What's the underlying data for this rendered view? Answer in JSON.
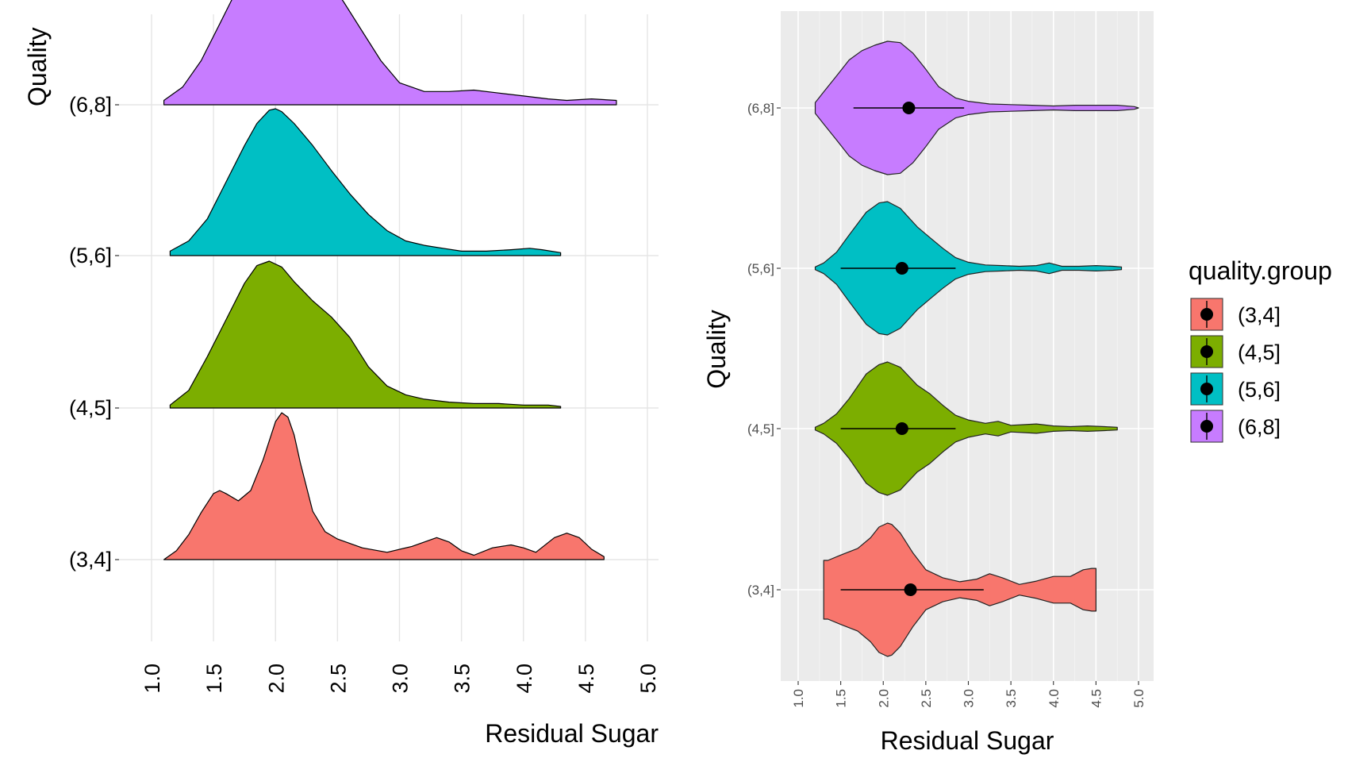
{
  "chart_data": [
    {
      "type": "area",
      "subtype": "ridgeline-density",
      "xlabel": "Residual Sugar",
      "ylabel": "Quality",
      "xlim": [
        1.0,
        5.0
      ],
      "x_ticks": [
        "1.0",
        "1.5",
        "2.0",
        "2.5",
        "3.0",
        "3.5",
        "4.0",
        "4.5",
        "5.0"
      ],
      "categories": [
        "(3,4]",
        "(4,5]",
        "(5,6]",
        "(6,8]"
      ],
      "grid": true,
      "series": [
        {
          "name": "(3,4]",
          "color": "#F8766D",
          "x": [
            1.1,
            1.2,
            1.3,
            1.4,
            1.5,
            1.55,
            1.6,
            1.7,
            1.8,
            1.9,
            2.0,
            2.05,
            2.1,
            2.15,
            2.2,
            2.3,
            2.4,
            2.5,
            2.7,
            2.9,
            3.1,
            3.3,
            3.4,
            3.5,
            3.6,
            3.75,
            3.9,
            4.0,
            4.1,
            4.25,
            4.35,
            4.45,
            4.55,
            4.65
          ],
          "density": [
            0.0,
            0.06,
            0.17,
            0.32,
            0.45,
            0.47,
            0.45,
            0.4,
            0.47,
            0.68,
            0.94,
            1.0,
            0.97,
            0.85,
            0.66,
            0.33,
            0.19,
            0.14,
            0.08,
            0.05,
            0.09,
            0.15,
            0.12,
            0.06,
            0.03,
            0.08,
            0.1,
            0.08,
            0.05,
            0.15,
            0.18,
            0.15,
            0.07,
            0.02
          ]
        },
        {
          "name": "(4,5]",
          "color": "#7CAE00",
          "x": [
            1.15,
            1.3,
            1.45,
            1.6,
            1.75,
            1.85,
            1.95,
            2.05,
            2.15,
            2.3,
            2.45,
            2.6,
            2.75,
            2.9,
            3.05,
            3.2,
            3.4,
            3.6,
            3.8,
            4.0,
            4.2,
            4.3
          ],
          "density": [
            0.02,
            0.12,
            0.35,
            0.6,
            0.85,
            0.97,
            1.0,
            0.96,
            0.86,
            0.73,
            0.62,
            0.48,
            0.28,
            0.15,
            0.09,
            0.06,
            0.04,
            0.03,
            0.03,
            0.02,
            0.02,
            0.01
          ]
        },
        {
          "name": "(5,6]",
          "color": "#00BFC4",
          "x": [
            1.15,
            1.3,
            1.45,
            1.6,
            1.75,
            1.85,
            1.95,
            2.0,
            2.05,
            2.15,
            2.3,
            2.45,
            2.6,
            2.75,
            2.9,
            3.05,
            3.2,
            3.35,
            3.5,
            3.7,
            3.9,
            4.05,
            4.15,
            4.3
          ],
          "density": [
            0.03,
            0.1,
            0.25,
            0.5,
            0.75,
            0.9,
            0.99,
            1.0,
            0.98,
            0.9,
            0.75,
            0.58,
            0.42,
            0.28,
            0.17,
            0.1,
            0.07,
            0.05,
            0.03,
            0.03,
            0.04,
            0.05,
            0.04,
            0.02
          ]
        },
        {
          "name": "(6,8]",
          "color": "#C77CFF",
          "x": [
            1.1,
            1.25,
            1.4,
            1.55,
            1.65,
            1.75,
            1.85,
            1.95,
            2.05,
            2.15,
            2.25,
            2.4,
            2.55,
            2.7,
            2.85,
            3.0,
            3.2,
            3.4,
            3.6,
            3.8,
            4.0,
            4.2,
            4.35,
            4.55,
            4.75
          ],
          "density": [
            0.03,
            0.12,
            0.3,
            0.55,
            0.72,
            0.82,
            0.86,
            0.92,
            0.97,
            1.0,
            0.98,
            0.88,
            0.7,
            0.5,
            0.3,
            0.15,
            0.09,
            0.09,
            0.1,
            0.08,
            0.06,
            0.04,
            0.03,
            0.04,
            0.03
          ]
        }
      ]
    },
    {
      "type": "violin",
      "xlabel": "Residual Sugar",
      "ylabel": "Quality",
      "xlim": [
        1.0,
        5.0
      ],
      "x_ticks": [
        "1.0",
        "1.5",
        "2.0",
        "2.5",
        "3.0",
        "3.5",
        "4.0",
        "4.5",
        "5.0"
      ],
      "categories": [
        "(3,4]",
        "(4,5]",
        "(5,6]",
        "(6,8]"
      ],
      "grid": true,
      "panel_background": "#EBEBEB",
      "legend": {
        "title": "quality.group",
        "position": "right",
        "entries": [
          "(3,4]",
          "(4,5]",
          "(5,6]",
          "(6,8]"
        ]
      },
      "series": [
        {
          "name": "(3,4]",
          "color": "#F8766D",
          "summary": {
            "mean": 2.32,
            "low": 1.5,
            "high": 3.18
          },
          "x": [
            1.3,
            1.35,
            1.5,
            1.7,
            1.85,
            1.95,
            2.05,
            2.1,
            2.2,
            2.35,
            2.5,
            2.7,
            2.9,
            3.1,
            3.25,
            3.4,
            3.6,
            3.8,
            4.0,
            4.2,
            4.35,
            4.45,
            4.5
          ],
          "width": [
            0.44,
            0.44,
            0.52,
            0.62,
            0.78,
            0.94,
            1.0,
            0.98,
            0.85,
            0.55,
            0.3,
            0.18,
            0.12,
            0.16,
            0.24,
            0.18,
            0.08,
            0.13,
            0.2,
            0.2,
            0.3,
            0.32,
            0.32
          ]
        },
        {
          "name": "(4,5]",
          "color": "#7CAE00",
          "summary": {
            "mean": 2.22,
            "low": 1.5,
            "high": 2.85
          },
          "x": [
            1.2,
            1.3,
            1.45,
            1.6,
            1.8,
            1.95,
            2.05,
            2.2,
            2.4,
            2.55,
            2.7,
            2.85,
            3.0,
            3.2,
            3.35,
            3.5,
            3.65,
            3.8,
            4.0,
            4.2,
            4.4,
            4.6,
            4.75
          ],
          "width": [
            0.02,
            0.08,
            0.22,
            0.45,
            0.82,
            0.96,
            1.0,
            0.92,
            0.65,
            0.52,
            0.35,
            0.2,
            0.13,
            0.08,
            0.11,
            0.05,
            0.06,
            0.07,
            0.04,
            0.03,
            0.04,
            0.03,
            0.02
          ]
        },
        {
          "name": "(5,6]",
          "color": "#00BFC4",
          "summary": {
            "mean": 2.22,
            "low": 1.5,
            "high": 2.85
          },
          "x": [
            1.2,
            1.3,
            1.45,
            1.6,
            1.8,
            1.95,
            2.05,
            2.2,
            2.4,
            2.55,
            2.7,
            2.85,
            3.0,
            3.2,
            3.4,
            3.6,
            3.8,
            3.95,
            4.1,
            4.3,
            4.5,
            4.7,
            4.8
          ],
          "width": [
            0.02,
            0.08,
            0.24,
            0.5,
            0.84,
            0.98,
            1.0,
            0.9,
            0.62,
            0.46,
            0.3,
            0.16,
            0.09,
            0.05,
            0.04,
            0.03,
            0.04,
            0.08,
            0.03,
            0.03,
            0.04,
            0.03,
            0.02
          ]
        },
        {
          "name": "(6,8]",
          "color": "#C77CFF",
          "summary": {
            "mean": 2.3,
            "low": 1.65,
            "high": 2.95
          },
          "x": [
            1.2,
            1.3,
            1.45,
            1.6,
            1.75,
            1.9,
            2.05,
            2.2,
            2.35,
            2.5,
            2.65,
            2.85,
            3.0,
            3.25,
            3.5,
            3.75,
            4.0,
            4.25,
            4.5,
            4.75,
            4.95,
            5.0
          ],
          "width": [
            0.08,
            0.24,
            0.48,
            0.72,
            0.86,
            0.94,
            1.0,
            0.98,
            0.82,
            0.58,
            0.32,
            0.15,
            0.1,
            0.06,
            0.05,
            0.04,
            0.03,
            0.04,
            0.04,
            0.04,
            0.02,
            0.0
          ]
        }
      ]
    }
  ]
}
